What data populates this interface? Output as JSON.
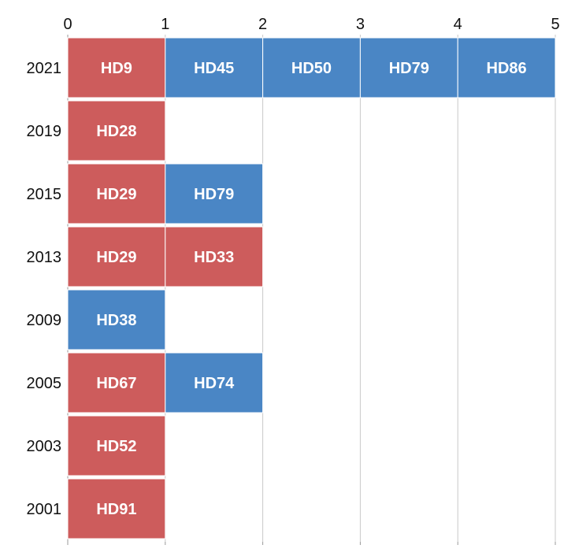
{
  "chart_data": {
    "type": "bar",
    "orientation": "horizontal-stacked",
    "title": "",
    "xlabel": "",
    "ylabel": "",
    "xlim": [
      0,
      5
    ],
    "x_ticks": [
      "0",
      "1",
      "2",
      "3",
      "4",
      "5"
    ],
    "grid": "vertical",
    "legend": "none",
    "colors": {
      "red": "#cd5c5c",
      "blue": "#4a86c5",
      "grid": "#c8c8c8",
      "axis": "#999999"
    },
    "rows": [
      {
        "year": "2021",
        "segments": [
          {
            "label": "HD9",
            "color": "red"
          },
          {
            "label": "HD45",
            "color": "blue"
          },
          {
            "label": "HD50",
            "color": "blue"
          },
          {
            "label": "HD79",
            "color": "blue"
          },
          {
            "label": "HD86",
            "color": "blue"
          }
        ]
      },
      {
        "year": "2019",
        "segments": [
          {
            "label": "HD28",
            "color": "red"
          }
        ]
      },
      {
        "year": "2015",
        "segments": [
          {
            "label": "HD29",
            "color": "red"
          },
          {
            "label": "HD79",
            "color": "blue"
          }
        ]
      },
      {
        "year": "2013",
        "segments": [
          {
            "label": "HD29",
            "color": "red"
          },
          {
            "label": "HD33",
            "color": "red"
          }
        ]
      },
      {
        "year": "2009",
        "segments": [
          {
            "label": "HD38",
            "color": "blue"
          }
        ]
      },
      {
        "year": "2005",
        "segments": [
          {
            "label": "HD67",
            "color": "red"
          },
          {
            "label": "HD74",
            "color": "blue"
          }
        ]
      },
      {
        "year": "2003",
        "segments": [
          {
            "label": "HD52",
            "color": "red"
          }
        ]
      },
      {
        "year": "2001",
        "segments": [
          {
            "label": "HD91",
            "color": "red"
          }
        ]
      }
    ]
  }
}
